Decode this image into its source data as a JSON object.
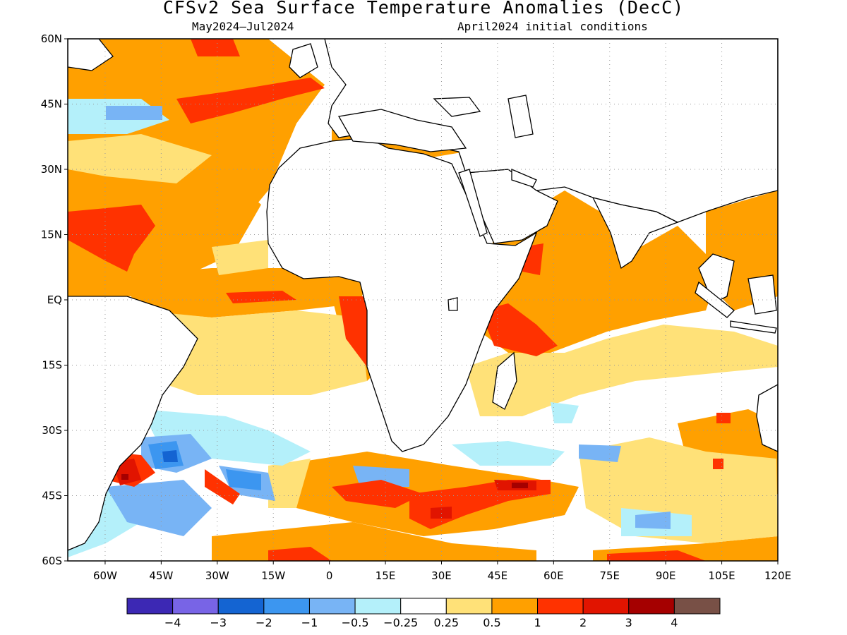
{
  "header": {
    "title": "CFSv2 Sea Surface Temperature Anomalies (DecC)",
    "period": "May2024–Jul2024",
    "initial_conditions": "April2024 initial conditions"
  },
  "map": {
    "lon_range": [
      -70,
      120
    ],
    "lat_range": [
      -60,
      60
    ],
    "lat_ticks": [
      "60N",
      "45N",
      "30N",
      "15N",
      "EQ",
      "15S",
      "30S",
      "45S",
      "60S"
    ],
    "lon_ticks": [
      "60W",
      "45W",
      "30W",
      "15W",
      "0",
      "15E",
      "30E",
      "45E",
      "60E",
      "75E",
      "90E",
      "105E",
      "120E"
    ],
    "grid": true,
    "land_color": "#ffffff"
  },
  "colorbar": {
    "colors": [
      "#3c28b4",
      "#7864e6",
      "#1464d2",
      "#3c96f0",
      "#78b4f5",
      "#b4f0fa",
      "#ffffff",
      "#ffe178",
      "#ffa000",
      "#ff3200",
      "#e11400",
      "#a50000",
      "#785046"
    ],
    "labels": [
      "−4",
      "−3",
      "−2",
      "−1",
      "−0.5",
      "−0.25",
      "0.25",
      "0.5",
      "1",
      "2",
      "3",
      "4"
    ]
  }
}
